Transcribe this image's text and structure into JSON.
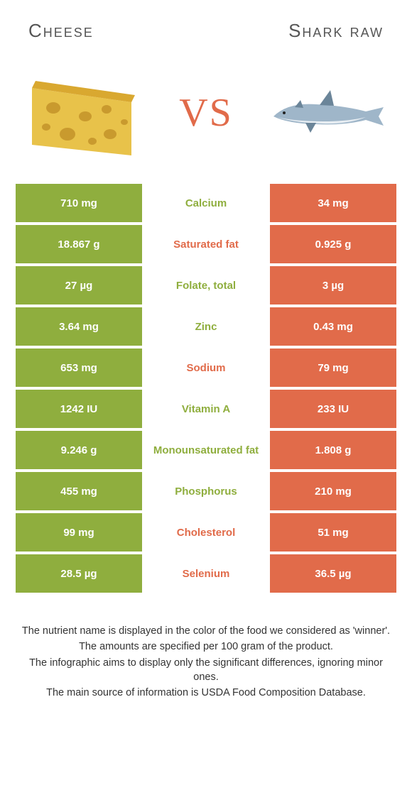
{
  "header": {
    "left_title": "Cheese",
    "right_title": "Shark raw"
  },
  "vs_label": "VS",
  "colors": {
    "left_bg": "#8fae3e",
    "right_bg": "#e16b4a",
    "left_text": "#8fae3e",
    "right_text": "#e16b4a",
    "cheese_fill": "#e8c24a",
    "cheese_rind": "#d9a830",
    "cheese_hole": "#c99a2e",
    "shark_body": "#9fb6c9",
    "shark_belly": "#e8eef3",
    "shark_dark": "#6b8599"
  },
  "rows": [
    {
      "left": "710 mg",
      "mid": "Calcium",
      "right": "34 mg",
      "winner": "left"
    },
    {
      "left": "18.867 g",
      "mid": "Saturated fat",
      "right": "0.925 g",
      "winner": "right"
    },
    {
      "left": "27 µg",
      "mid": "Folate, total",
      "right": "3 µg",
      "winner": "left"
    },
    {
      "left": "3.64 mg",
      "mid": "Zinc",
      "right": "0.43 mg",
      "winner": "left"
    },
    {
      "left": "653 mg",
      "mid": "Sodium",
      "right": "79 mg",
      "winner": "right"
    },
    {
      "left": "1242 IU",
      "mid": "Vitamin A",
      "right": "233 IU",
      "winner": "left"
    },
    {
      "left": "9.246 g",
      "mid": "Monounsaturated fat",
      "right": "1.808 g",
      "winner": "left"
    },
    {
      "left": "455 mg",
      "mid": "Phosphorus",
      "right": "210 mg",
      "winner": "left"
    },
    {
      "left": "99 mg",
      "mid": "Cholesterol",
      "right": "51 mg",
      "winner": "right"
    },
    {
      "left": "28.5 µg",
      "mid": "Selenium",
      "right": "36.5 µg",
      "winner": "right"
    }
  ],
  "footer": {
    "line1": "The nutrient name is displayed in the color of the food we considered as 'winner'.",
    "line2": "The amounts are specified per 100 gram of the product.",
    "line3": "The infographic aims to display only the significant differences, ignoring minor ones.",
    "line4": "The main source of information is USDA Food Composition Database."
  }
}
